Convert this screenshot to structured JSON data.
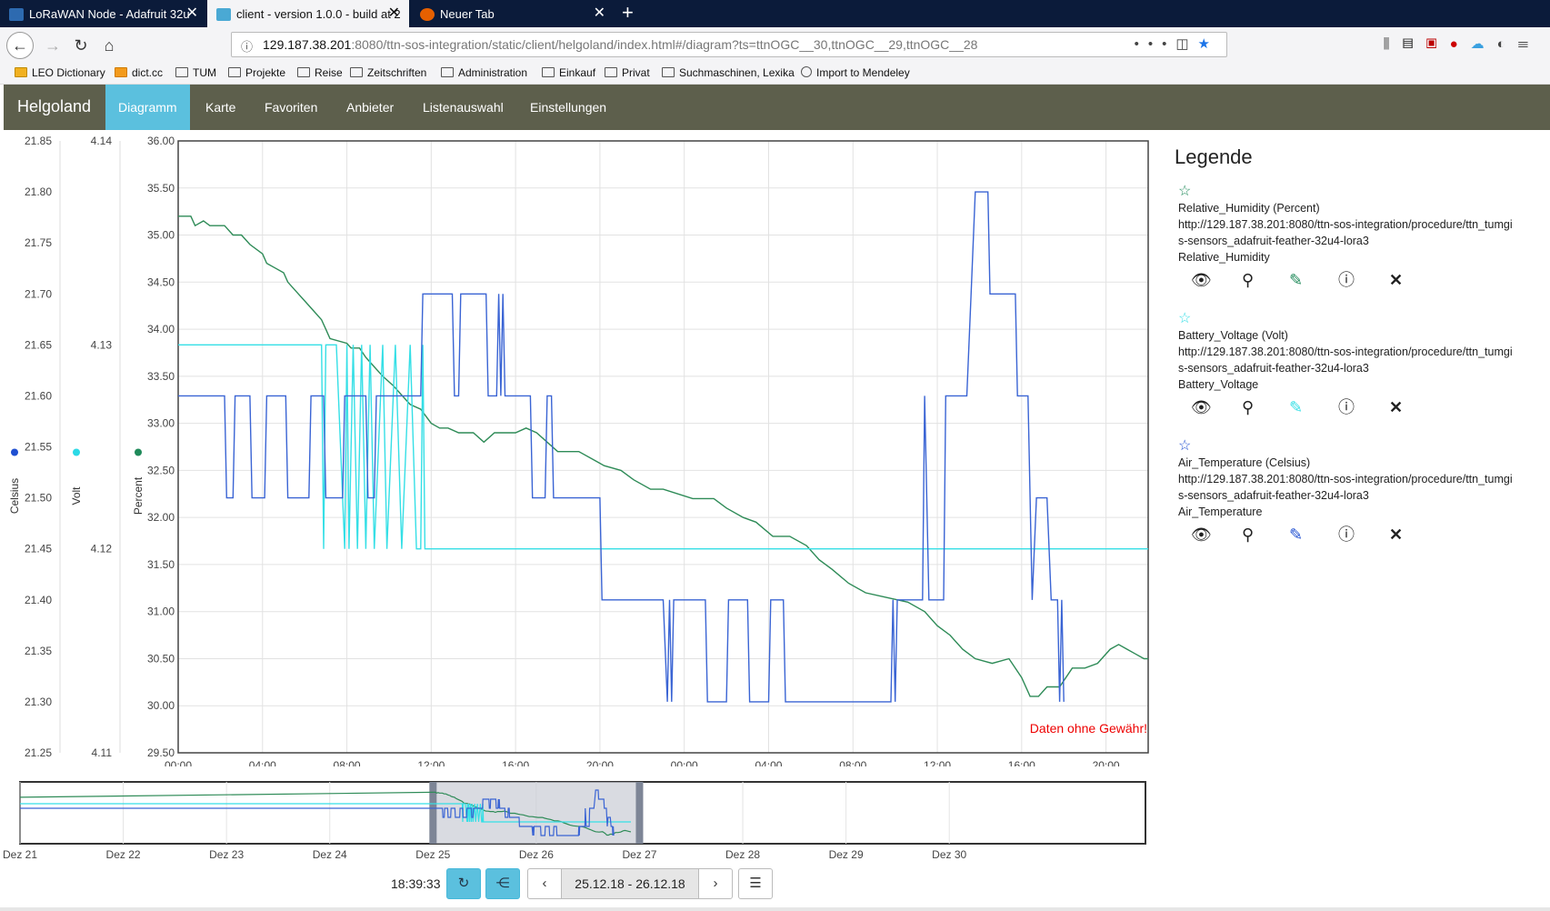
{
  "browser": {
    "tabs": [
      {
        "label": "LoRaWAN Node - Adafruit 32u",
        "favicon_color": "#2d6ab0"
      },
      {
        "label": "client - version 1.0.0 - build at 2",
        "favicon_color": "#4aa9d4"
      },
      {
        "label": "Neuer Tab",
        "favicon_color": "#e66000"
      }
    ],
    "url_host": "129.187.38.201",
    "url_rest": ":8080/ttn-sos-integration/static/client/helgoland/index.html#/diagram?ts=ttnOGC__30,ttnOGC__29,ttnOGC__28",
    "bookmarks": [
      "LEO Dictionary",
      "dict.cc",
      "TUM",
      "Projekte",
      "Reise",
      "Zeitschriften",
      "Administration",
      "Einkauf",
      "Privat",
      "Suchmaschinen, Lexika",
      "Import to Mendeley"
    ]
  },
  "app": {
    "brand": "Helgoland",
    "menu": [
      "Diagramm",
      "Karte",
      "Favoriten",
      "Anbieter",
      "Listenauswahl",
      "Einstellungen"
    ],
    "active_menu": "Diagramm",
    "nav_color": "#5d5f4c",
    "active_color": "#5bc0de"
  },
  "chart_data": {
    "type": "line",
    "disclaimer": "Daten ohne Gewähr!",
    "x_ticks": [
      "00:00",
      "04:00",
      "08:00",
      "12:00",
      "16:00",
      "20:00",
      "00:00",
      "04:00",
      "08:00",
      "12:00",
      "16:00",
      "20:00"
    ],
    "x_range_hours": [
      0,
      46
    ],
    "grid": true,
    "axes": [
      {
        "label": "Celsius",
        "ticks": [
          "21.85",
          "21.80",
          "21.75",
          "21.70",
          "21.65",
          "21.60",
          "21.55",
          "21.50",
          "21.45",
          "21.40",
          "21.35",
          "21.30",
          "21.25"
        ],
        "range": [
          21.25,
          21.85
        ],
        "color": "#1f4fd1"
      },
      {
        "label": "Volt",
        "ticks": [
          "4.14",
          "4.13",
          "4.12",
          "4.11"
        ],
        "range": [
          4.11,
          4.14
        ],
        "color": "#2bd9e6"
      },
      {
        "label": "Percent",
        "ticks": [
          "36.00",
          "35.50",
          "35.00",
          "34.50",
          "34.00",
          "33.50",
          "33.00",
          "32.50",
          "32.00",
          "31.50",
          "31.00",
          "30.50",
          "30.00",
          "29.50"
        ],
        "range": [
          29.5,
          36.0
        ],
        "color": "#1f8a5a"
      }
    ],
    "series": [
      {
        "name": "Relative_Humidity (Percent)",
        "axis": 2,
        "color": "#2e8b57",
        "points": [
          [
            0,
            35.2
          ],
          [
            0.6,
            35.2
          ],
          [
            0.8,
            35.1
          ],
          [
            1.2,
            35.15
          ],
          [
            1.5,
            35.1
          ],
          [
            2.2,
            35.1
          ],
          [
            2.6,
            35.0
          ],
          [
            3.0,
            35.0
          ],
          [
            3.4,
            34.9
          ],
          [
            4.0,
            34.8
          ],
          [
            4.2,
            34.7
          ],
          [
            4.6,
            34.65
          ],
          [
            5.0,
            34.6
          ],
          [
            5.2,
            34.5
          ],
          [
            5.6,
            34.4
          ],
          [
            6.0,
            34.3
          ],
          [
            6.4,
            34.2
          ],
          [
            6.8,
            34.1
          ],
          [
            7.0,
            34.0
          ],
          [
            7.2,
            33.9
          ],
          [
            8.0,
            33.85
          ],
          [
            8.2,
            33.8
          ],
          [
            8.6,
            33.8
          ],
          [
            8.9,
            33.7
          ],
          [
            9.3,
            33.6
          ],
          [
            9.7,
            33.5
          ],
          [
            10.2,
            33.4
          ],
          [
            10.6,
            33.3
          ],
          [
            11.0,
            33.2
          ],
          [
            11.5,
            33.15
          ],
          [
            12.0,
            33.0
          ],
          [
            12.4,
            32.95
          ],
          [
            12.8,
            32.95
          ],
          [
            13.3,
            32.9
          ],
          [
            14.0,
            32.9
          ],
          [
            14.5,
            32.8
          ],
          [
            15.0,
            32.9
          ],
          [
            16.0,
            32.9
          ],
          [
            16.5,
            32.95
          ],
          [
            17.0,
            32.9
          ],
          [
            17.5,
            32.8
          ],
          [
            18.0,
            32.7
          ],
          [
            19.0,
            32.7
          ],
          [
            19.8,
            32.6
          ],
          [
            20.2,
            32.55
          ],
          [
            21.0,
            32.5
          ],
          [
            21.6,
            32.4
          ],
          [
            22.4,
            32.3
          ],
          [
            23.0,
            32.3
          ],
          [
            24.4,
            32.2
          ],
          [
            25.4,
            32.2
          ],
          [
            26.0,
            32.1
          ],
          [
            26.8,
            32.0
          ],
          [
            27.4,
            31.95
          ],
          [
            28.2,
            31.8
          ],
          [
            29.0,
            31.8
          ],
          [
            29.8,
            31.7
          ],
          [
            30.4,
            31.55
          ],
          [
            31.0,
            31.45
          ],
          [
            31.8,
            31.3
          ],
          [
            32.6,
            31.2
          ],
          [
            33.6,
            31.15
          ],
          [
            34.6,
            31.1
          ],
          [
            35.4,
            31.0
          ],
          [
            36.0,
            30.85
          ],
          [
            36.6,
            30.75
          ],
          [
            37.2,
            30.6
          ],
          [
            37.8,
            30.5
          ],
          [
            38.6,
            30.45
          ],
          [
            39.4,
            30.5
          ],
          [
            40.0,
            30.3
          ],
          [
            40.4,
            30.1
          ],
          [
            40.8,
            30.1
          ],
          [
            41.2,
            30.2
          ],
          [
            41.8,
            30.2
          ],
          [
            42.4,
            30.4
          ],
          [
            43.0,
            30.4
          ],
          [
            43.6,
            30.45
          ],
          [
            44.2,
            30.6
          ],
          [
            44.6,
            30.65
          ],
          [
            45.0,
            30.6
          ],
          [
            45.4,
            30.55
          ],
          [
            45.8,
            30.5
          ],
          [
            46.0,
            30.5
          ]
        ]
      },
      {
        "name": "Battery_Voltage (Volt)",
        "axis": 1,
        "color": "#35dfe6",
        "points": [
          [
            0,
            4.13
          ],
          [
            6.8,
            4.13
          ],
          [
            6.9,
            4.12
          ],
          [
            7.0,
            4.13
          ],
          [
            7.5,
            4.13
          ],
          [
            7.9,
            4.12
          ],
          [
            8.0,
            4.13
          ],
          [
            8.1,
            4.12
          ],
          [
            8.3,
            4.13
          ],
          [
            8.5,
            4.12
          ],
          [
            8.7,
            4.13
          ],
          [
            8.9,
            4.12
          ],
          [
            9.1,
            4.13
          ],
          [
            9.3,
            4.12
          ],
          [
            9.7,
            4.13
          ],
          [
            9.9,
            4.12
          ],
          [
            10.3,
            4.13
          ],
          [
            10.6,
            4.12
          ],
          [
            11.0,
            4.13
          ],
          [
            11.3,
            4.12
          ],
          [
            11.5,
            4.12
          ],
          [
            11.6,
            4.13
          ],
          [
            11.7,
            4.12
          ],
          [
            46.0,
            4.12
          ]
        ]
      },
      {
        "name": "Air_Temperature (Celsius)",
        "axis": 0,
        "color": "#3a64d4",
        "points": [
          [
            0,
            21.6
          ],
          [
            2.2,
            21.6
          ],
          [
            2.3,
            21.5
          ],
          [
            2.6,
            21.5
          ],
          [
            2.7,
            21.6
          ],
          [
            3.4,
            21.6
          ],
          [
            3.5,
            21.5
          ],
          [
            4.1,
            21.5
          ],
          [
            4.2,
            21.6
          ],
          [
            5.1,
            21.6
          ],
          [
            5.2,
            21.5
          ],
          [
            6.2,
            21.5
          ],
          [
            6.3,
            21.6
          ],
          [
            6.9,
            21.6
          ],
          [
            7.0,
            21.5
          ],
          [
            7.8,
            21.5
          ],
          [
            7.9,
            21.6
          ],
          [
            8.9,
            21.6
          ],
          [
            9.0,
            21.5
          ],
          [
            9.3,
            21.5
          ],
          [
            9.4,
            21.6
          ],
          [
            11.5,
            21.6
          ],
          [
            11.6,
            21.7
          ],
          [
            13.0,
            21.7
          ],
          [
            13.1,
            21.6
          ],
          [
            13.3,
            21.6
          ],
          [
            13.4,
            21.7
          ],
          [
            14.6,
            21.7
          ],
          [
            14.7,
            21.6
          ],
          [
            15.1,
            21.6
          ],
          [
            15.2,
            21.7
          ],
          [
            15.3,
            21.6
          ],
          [
            15.4,
            21.7
          ],
          [
            15.5,
            21.6
          ],
          [
            16.7,
            21.6
          ],
          [
            16.8,
            21.5
          ],
          [
            17.4,
            21.5
          ],
          [
            17.5,
            21.6
          ],
          [
            17.7,
            21.6
          ],
          [
            17.8,
            21.5
          ],
          [
            20.0,
            21.5
          ],
          [
            20.1,
            21.4
          ],
          [
            23.0,
            21.4
          ],
          [
            23.2,
            21.3
          ],
          [
            23.3,
            21.4
          ],
          [
            23.4,
            21.3
          ],
          [
            23.5,
            21.4
          ],
          [
            25.0,
            21.4
          ],
          [
            25.1,
            21.3
          ],
          [
            26.0,
            21.3
          ],
          [
            26.1,
            21.4
          ],
          [
            27.0,
            21.4
          ],
          [
            27.1,
            21.3
          ],
          [
            28.0,
            21.3
          ],
          [
            28.1,
            21.4
          ],
          [
            28.7,
            21.4
          ],
          [
            28.8,
            21.3
          ],
          [
            33.8,
            21.3
          ],
          [
            33.9,
            21.4
          ],
          [
            34.0,
            21.3
          ],
          [
            34.1,
            21.4
          ],
          [
            35.3,
            21.4
          ],
          [
            35.4,
            21.6
          ],
          [
            35.6,
            21.4
          ],
          [
            36.3,
            21.4
          ],
          [
            36.4,
            21.6
          ],
          [
            37.4,
            21.6
          ],
          [
            37.6,
            21.7
          ],
          [
            37.8,
            21.8
          ],
          [
            38.4,
            21.8
          ],
          [
            38.5,
            21.7
          ],
          [
            39.7,
            21.7
          ],
          [
            39.8,
            21.6
          ],
          [
            40.3,
            21.6
          ],
          [
            40.5,
            21.4
          ],
          [
            40.7,
            21.5
          ],
          [
            41.2,
            21.5
          ],
          [
            41.4,
            21.4
          ],
          [
            41.7,
            21.4
          ],
          [
            41.8,
            21.3
          ],
          [
            41.9,
            21.4
          ],
          [
            42.0,
            21.3
          ]
        ]
      }
    ]
  },
  "legend": {
    "title": "Legende",
    "entries": [
      {
        "label": "Relative_Humidity (Percent)",
        "url1": "http://129.187.38.201:8080/ttn-sos-integration/procedure/ttn_tumgi",
        "url2": "s-sensors_adafruit-feather-32u4-lora3",
        "phenomenon": "Relative_Humidity",
        "color": "#1f8a5a"
      },
      {
        "label": "Battery_Voltage (Volt)",
        "url1": "http://129.187.38.201:8080/ttn-sos-integration/procedure/ttn_tumgi",
        "url2": "s-sensors_adafruit-feather-32u4-lora3",
        "phenomenon": "Battery_Voltage",
        "color": "#35dfe6"
      },
      {
        "label": "Air_Temperature (Celsius)",
        "url1": "http://129.187.38.201:8080/ttn-sos-integration/procedure/ttn_tumgi",
        "url2": "s-sensors_adafruit-feather-32u4-lora3",
        "phenomenon": "Air_Temperature",
        "color": "#1f4fd1"
      }
    ]
  },
  "overview": {
    "day_labels": [
      "Dez 21",
      "Dez 22",
      "Dez 23",
      "Dez 24",
      "Dez 25",
      "Dez 26",
      "Dez 27",
      "Dez 28",
      "Dez 29",
      "Dez 30"
    ]
  },
  "controls": {
    "time": "18:39:33",
    "range": "25.12.18 - 26.12.18"
  }
}
